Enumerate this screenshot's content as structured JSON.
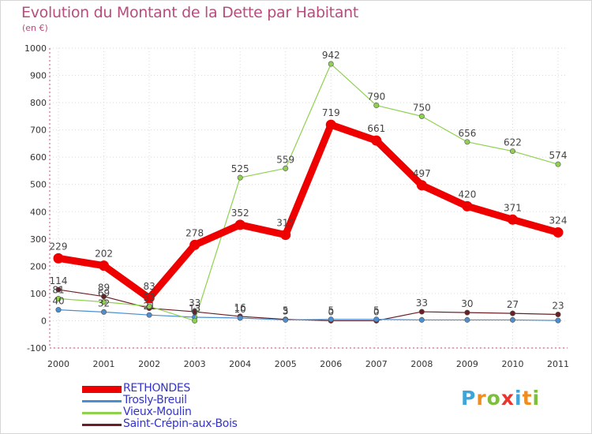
{
  "chart_data": {
    "type": "line",
    "title": "Evolution du Montant de la Dette par Habitant",
    "subtitle": "(en €)",
    "xlabel": "",
    "ylabel": "",
    "categories": [
      "2000",
      "2001",
      "2002",
      "2003",
      "2004",
      "2005",
      "2006",
      "2007",
      "2008",
      "2009",
      "2010",
      "2011"
    ],
    "ylim": [
      -100,
      1000
    ],
    "yticks": [
      "-100",
      "0",
      "100",
      "200",
      "300",
      "400",
      "500",
      "600",
      "700",
      "800",
      "900",
      "1000"
    ],
    "grid": true,
    "legend_position": "bottom-left",
    "series": [
      {
        "name": "Saint-Crépin-aux-Bois",
        "color": "#6b1f24",
        "values": [
          114,
          89,
          46,
          33,
          16,
          5,
          0,
          0,
          33,
          30,
          27,
          23
        ],
        "labels": [
          "114",
          "89",
          "",
          "33",
          "16",
          "5",
          "0",
          "0",
          "33",
          "30",
          "27",
          "23"
        ]
      },
      {
        "name": "Trosly-Breuil",
        "color": "#4a8fd0",
        "values": [
          40,
          32,
          21,
          13,
          10,
          3,
          5,
          5,
          3,
          3,
          3,
          1
        ],
        "labels": [
          "40",
          "32",
          "21",
          "13",
          "10",
          "3",
          "5",
          "5",
          "",
          "",
          "",
          ""
        ]
      },
      {
        "name": "Vieux-Moulin",
        "color": "#8fd14f",
        "values": [
          81,
          69,
          53,
          0,
          525,
          559,
          942,
          790,
          750,
          656,
          622,
          574
        ],
        "labels": [
          "81",
          "69",
          "53",
          "0",
          "525",
          "559",
          "942",
          "790",
          "750",
          "656",
          "622",
          "574"
        ]
      },
      {
        "name": "RETHONDES",
        "color": "#ee0000",
        "values": [
          229,
          202,
          83,
          278,
          352,
          315,
          719,
          661,
          497,
          420,
          371,
          324
        ],
        "labels": [
          "229",
          "202",
          "83",
          "278",
          "352",
          "315",
          "719",
          "661",
          "497",
          "420",
          "371",
          "324"
        ]
      }
    ]
  },
  "legend": {
    "items": [
      {
        "label": "RETHONDES",
        "color": "#ee0000",
        "text_color": "#3333cc"
      },
      {
        "label": "Trosly-Breuil",
        "color": "#4a8fd0",
        "text_color": "#3333cc"
      },
      {
        "label": "Vieux-Moulin",
        "color": "#8fd14f",
        "text_color": "#3333cc"
      },
      {
        "label": "Saint-Crépin-aux-Bois",
        "color": "#6b1f24",
        "text_color": "#3333cc"
      }
    ]
  },
  "logo": {
    "text": "Proxiti",
    "letters": [
      {
        "ch": "P",
        "color": "#3fa4d8"
      },
      {
        "ch": "r",
        "color": "#f28c1e"
      },
      {
        "ch": "o",
        "color": "#7cbf3d"
      },
      {
        "ch": "x",
        "color": "#e8352e"
      },
      {
        "ch": "i",
        "color": "#3fa4d8"
      },
      {
        "ch": "t",
        "color": "#f28c1e"
      },
      {
        "ch": "i",
        "color": "#7cbf3d"
      }
    ]
  }
}
